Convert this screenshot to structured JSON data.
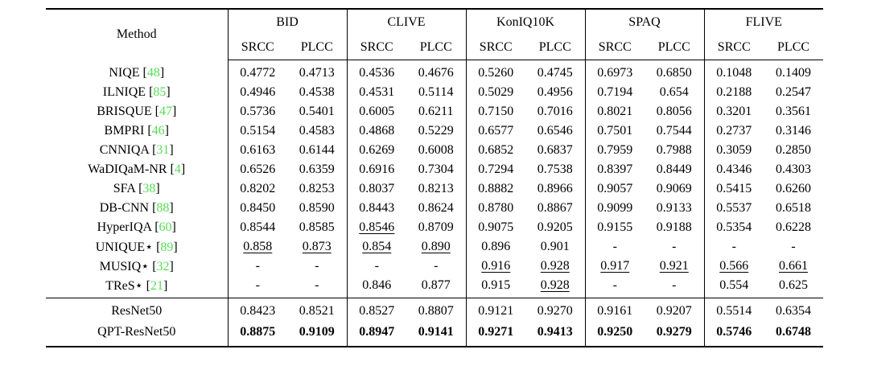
{
  "table": {
    "header": {
      "method": "Method",
      "groups": [
        "BID",
        "CLIVE",
        "KonIQ10K",
        "SPAQ",
        "FLIVE"
      ],
      "metrics": [
        "SRCC",
        "PLCC"
      ]
    },
    "citation_color": "#55dd55",
    "body_rows": [
      {
        "method": "NIQE",
        "cite": "48",
        "values": [
          "0.4772",
          "0.4713",
          "0.4536",
          "0.4676",
          "0.5260",
          "0.4745",
          "0.6973",
          "0.6850",
          "0.1048",
          "0.1409"
        ],
        "underline": [],
        "bold": false
      },
      {
        "method": "ILNIQE",
        "cite": "85",
        "values": [
          "0.4946",
          "0.4538",
          "0.4531",
          "0.5114",
          "0.5029",
          "0.4956",
          "0.7194",
          "0.654",
          "0.2188",
          "0.2547"
        ],
        "underline": [],
        "bold": false
      },
      {
        "method": "BRISQUE",
        "cite": "47",
        "values": [
          "0.5736",
          "0.5401",
          "0.6005",
          "0.6211",
          "0.7150",
          "0.7016",
          "0.8021",
          "0.8056",
          "0.3201",
          "0.3561"
        ],
        "underline": [],
        "bold": false
      },
      {
        "method": "BMPRI",
        "cite": "46",
        "values": [
          "0.5154",
          "0.4583",
          "0.4868",
          "0.5229",
          "0.6577",
          "0.6546",
          "0.7501",
          "0.7544",
          "0.2737",
          "0.3146"
        ],
        "underline": [],
        "bold": false
      },
      {
        "method": "CNNIQA",
        "cite": "31",
        "values": [
          "0.6163",
          "0.6144",
          "0.6269",
          "0.6008",
          "0.6852",
          "0.6837",
          "0.7959",
          "0.7988",
          "0.3059",
          "0.2850"
        ],
        "underline": [],
        "bold": false
      },
      {
        "method": "WaDIQaM-NR",
        "cite": "4",
        "values": [
          "0.6526",
          "0.6359",
          "0.6916",
          "0.7304",
          "0.7294",
          "0.7538",
          "0.8397",
          "0.8449",
          "0.4346",
          "0.4303"
        ],
        "underline": [],
        "bold": false
      },
      {
        "method": "SFA",
        "cite": "38",
        "values": [
          "0.8202",
          "0.8253",
          "0.8037",
          "0.8213",
          "0.8882",
          "0.8966",
          "0.9057",
          "0.9069",
          "0.5415",
          "0.6260"
        ],
        "underline": [],
        "bold": false
      },
      {
        "method": "DB-CNN",
        "cite": "88",
        "values": [
          "0.8450",
          "0.8590",
          "0.8443",
          "0.8624",
          "0.8780",
          "0.8867",
          "0.9099",
          "0.9133",
          "0.5537",
          "0.6518"
        ],
        "underline": [],
        "bold": false
      },
      {
        "method": "HyperIQA",
        "cite": "60",
        "values": [
          "0.8544",
          "0.8585",
          "0.8546",
          "0.8709",
          "0.9075",
          "0.9205",
          "0.9155",
          "0.9188",
          "0.5354",
          "0.6228"
        ],
        "underline": [
          2
        ],
        "bold": false
      },
      {
        "method": "UNIQUE⋆",
        "cite": "89",
        "values": [
          "0.858",
          "0.873",
          "0.854",
          "0.890",
          "0.896",
          "0.901",
          "-",
          "-",
          "-",
          "-"
        ],
        "underline": [
          0,
          1,
          2,
          3
        ],
        "bold": false
      },
      {
        "method": "MUSIQ⋆",
        "cite": "32",
        "values": [
          "-",
          "-",
          "-",
          "-",
          "0.916",
          "0.928",
          "0.917",
          "0.921",
          "0.566",
          "0.661"
        ],
        "underline": [
          4,
          5,
          6,
          7,
          8,
          9
        ],
        "bold": false
      },
      {
        "method": "TReS⋆",
        "cite": "21",
        "values": [
          "-",
          "-",
          "0.846",
          "0.877",
          "0.915",
          "0.928",
          "-",
          "-",
          "0.554",
          "0.625"
        ],
        "underline": [
          5
        ],
        "bold": false
      }
    ],
    "footer_rows": [
      {
        "method": "ResNet50",
        "cite": "",
        "values": [
          "0.8423",
          "0.8521",
          "0.8527",
          "0.8807",
          "0.9121",
          "0.9270",
          "0.9161",
          "0.9207",
          "0.5514",
          "0.6354"
        ],
        "underline": [],
        "bold": false
      },
      {
        "method": "QPT-ResNet50",
        "cite": "",
        "values": [
          "0.8875",
          "0.9109",
          "0.8947",
          "0.9141",
          "0.9271",
          "0.9413",
          "0.9250",
          "0.9279",
          "0.5746",
          "0.6748"
        ],
        "underline": [],
        "bold": true
      }
    ]
  }
}
